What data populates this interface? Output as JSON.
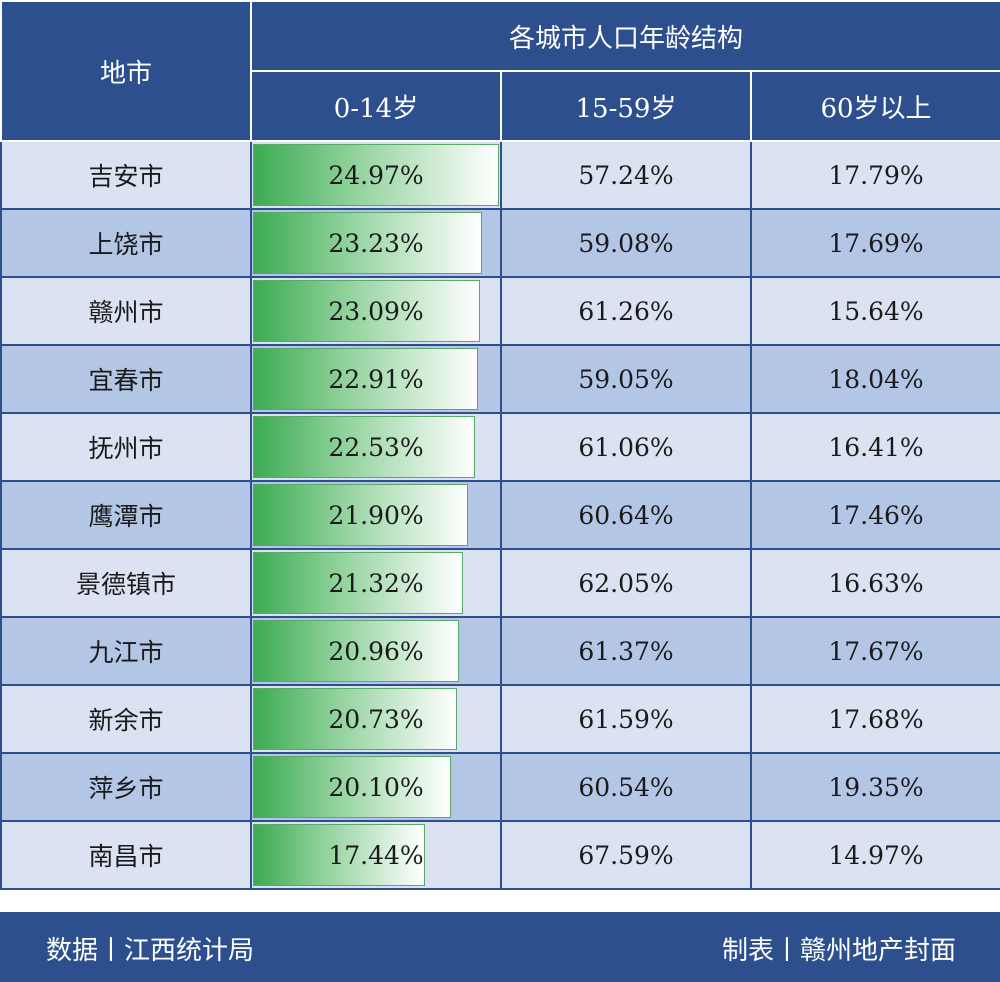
{
  "table": {
    "header_city": "地市",
    "header_group": "各城市人口年龄结构",
    "columns": [
      "0-14岁",
      "15-59岁",
      "60岁以上"
    ],
    "rows": [
      {
        "city": "吉安市",
        "age_0_14": "24.97%",
        "age_15_59": "57.24%",
        "age_60_plus": "17.79%",
        "value_0_14": 24.97
      },
      {
        "city": "上饶市",
        "age_0_14": "23.23%",
        "age_15_59": "59.08%",
        "age_60_plus": "17.69%",
        "value_0_14": 23.23
      },
      {
        "city": "赣州市",
        "age_0_14": "23.09%",
        "age_15_59": "61.26%",
        "age_60_plus": "15.64%",
        "value_0_14": 23.09
      },
      {
        "city": "宜春市",
        "age_0_14": "22.91%",
        "age_15_59": "59.05%",
        "age_60_plus": "18.04%",
        "value_0_14": 22.91
      },
      {
        "city": "抚州市",
        "age_0_14": "22.53%",
        "age_15_59": "61.06%",
        "age_60_plus": "16.41%",
        "value_0_14": 22.53
      },
      {
        "city": "鹰潭市",
        "age_0_14": "21.90%",
        "age_15_59": "60.64%",
        "age_60_plus": "17.46%",
        "value_0_14": 21.9
      },
      {
        "city": "景德镇市",
        "age_0_14": "21.32%",
        "age_15_59": "62.05%",
        "age_60_plus": "16.63%",
        "value_0_14": 21.32
      },
      {
        "city": "九江市",
        "age_0_14": "20.96%",
        "age_15_59": "61.37%",
        "age_60_plus": "17.67%",
        "value_0_14": 20.96
      },
      {
        "city": "新余市",
        "age_0_14": "20.73%",
        "age_15_59": "61.59%",
        "age_60_plus": "17.68%",
        "value_0_14": 20.73
      },
      {
        "city": "萍乡市",
        "age_0_14": "20.10%",
        "age_15_59": "60.54%",
        "age_60_plus": "19.35%",
        "value_0_14": 20.1
      },
      {
        "city": "南昌市",
        "age_0_14": "17.44%",
        "age_15_59": "67.59%",
        "age_60_plus": "14.97%",
        "value_0_14": 17.44
      }
    ]
  },
  "footer": {
    "source": "数据丨江西统计局",
    "credit": "制表丨赣州地产封面"
  },
  "colors": {
    "header_bg": "#2d4f8e",
    "row_light": "#dbe3f2",
    "row_dark": "#b4c6e6",
    "bar_green": "#3cab52"
  }
}
